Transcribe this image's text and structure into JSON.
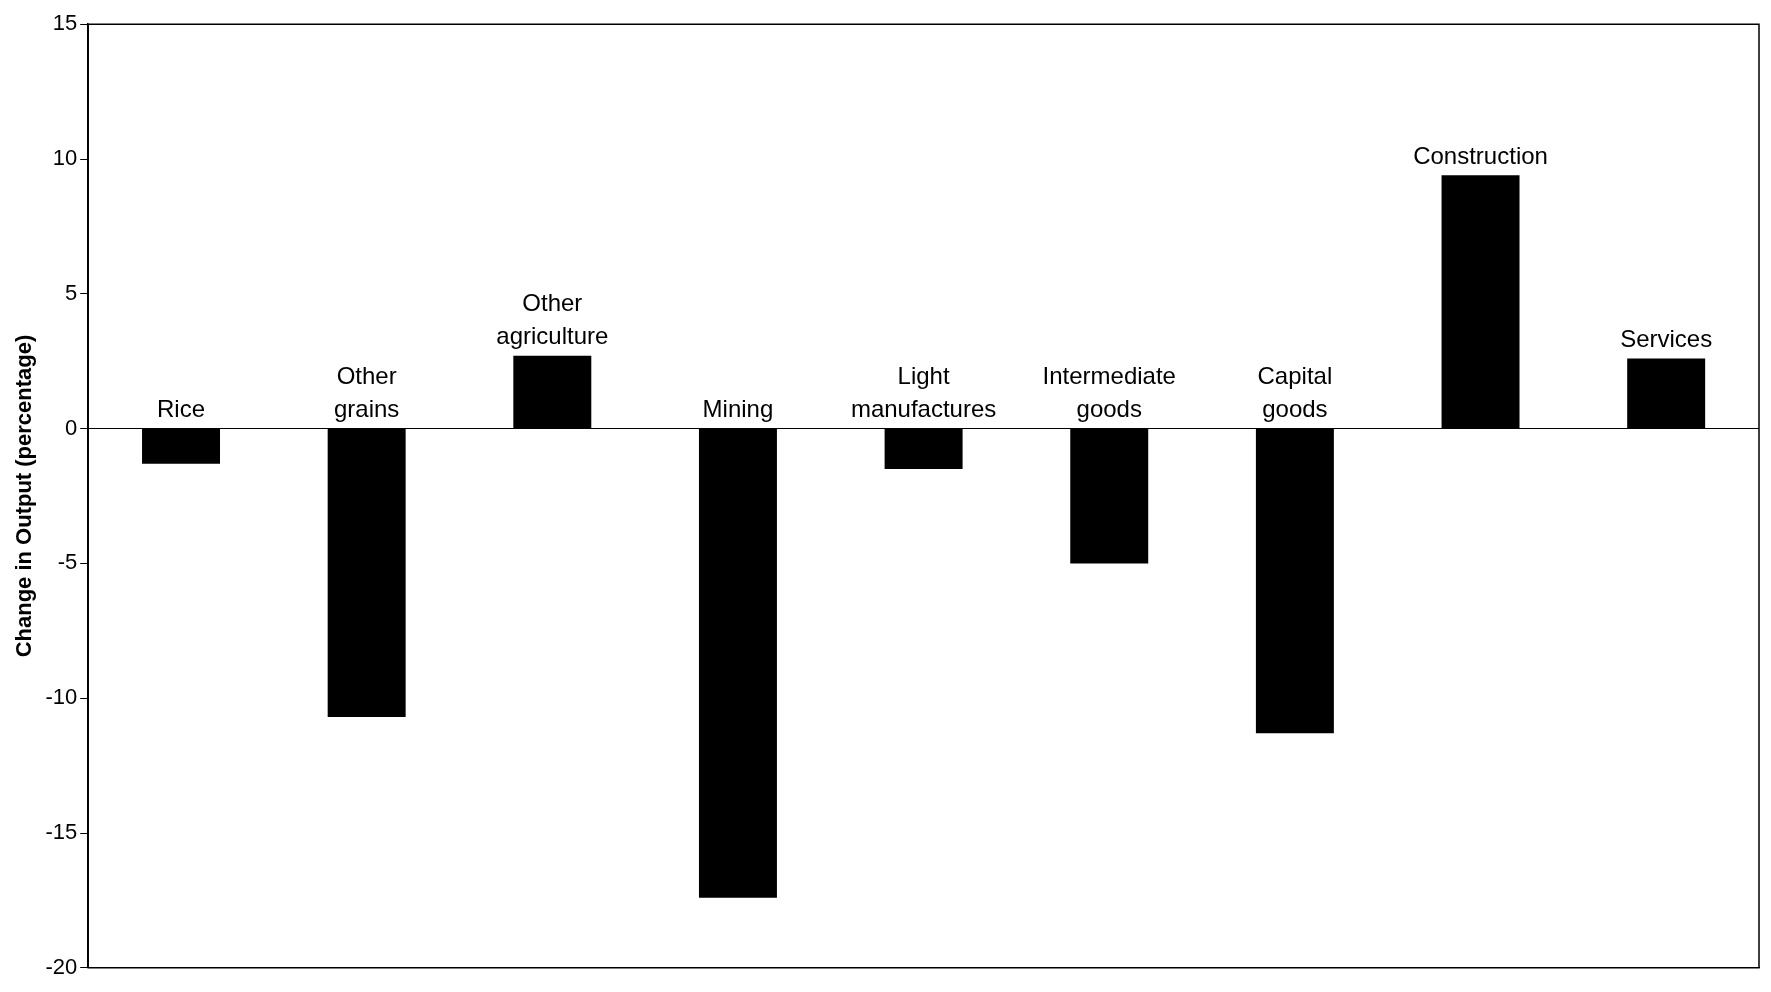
{
  "chart_data": {
    "type": "bar",
    "ylabel": "Change in Output (percentage)",
    "categories": [
      "Rice",
      "Other grains",
      "Other agriculture",
      "Mining",
      "Light manufactures",
      "Intermediate goods",
      "Capital goods",
      "Construction",
      "Services"
    ],
    "values": [
      -1.3,
      -10.7,
      2.7,
      -17.4,
      -1.5,
      -5.0,
      -11.3,
      9.4,
      2.6
    ],
    "color": "#000000",
    "ylim": [
      -20,
      15
    ],
    "yticks": [
      -20,
      -15,
      -10,
      -5,
      0,
      5,
      10,
      15
    ],
    "tick_labels": "y",
    "grid": false,
    "legend": false
  }
}
